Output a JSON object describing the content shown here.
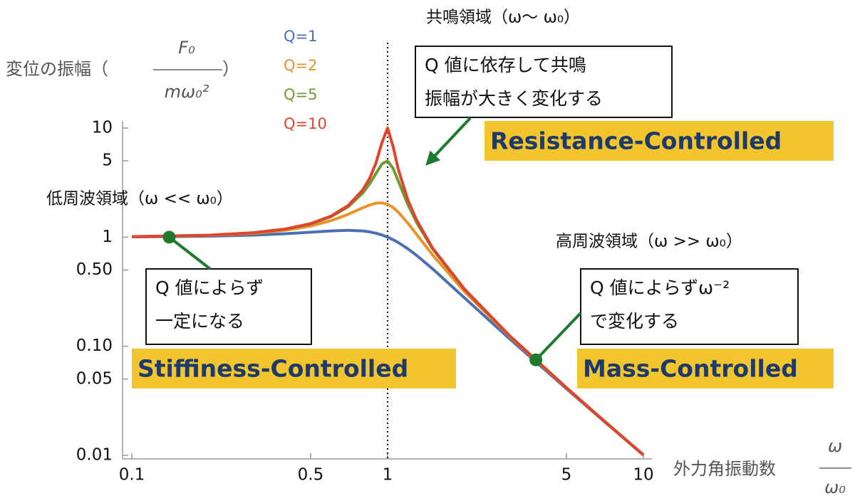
{
  "chart_data": {
    "type": "line",
    "x": [
      0.1,
      0.2,
      0.3,
      0.4,
      0.5,
      0.6,
      0.7,
      0.8,
      0.85,
      0.9,
      0.95,
      1,
      1.05,
      1.1,
      1.2,
      1.3,
      1.5,
      2,
      3,
      5,
      7,
      10
    ],
    "series": [
      {
        "name": "Q=1",
        "color": "#4a6fb5",
        "values": [
          1.005,
          1.02,
          1.044,
          1.075,
          1.109,
          1.14,
          1.155,
          1.14,
          1.118,
          1.087,
          1.047,
          1,
          0.948,
          0.893,
          0.782,
          0.679,
          0.512,
          0.277,
          0.117,
          0.0408,
          0.0206,
          0.01005
        ]
      },
      {
        "name": "Q=2",
        "color": "#e8932a",
        "values": [
          1.009,
          1.036,
          1.084,
          1.158,
          1.265,
          1.415,
          1.617,
          1.858,
          1.97,
          2.047,
          2.062,
          2,
          1.87,
          1.699,
          1.344,
          1.055,
          0.686,
          0.316,
          0.123,
          0.0414,
          0.0208,
          0.01009
        ]
      },
      {
        "name": "Q=5",
        "color": "#6e9a2e",
        "values": [
          1.01,
          1.041,
          1.097,
          1.185,
          1.322,
          1.536,
          1.891,
          2.538,
          3.073,
          3.821,
          4.683,
          5,
          4.279,
          3.288,
          1.995,
          1.356,
          0.778,
          0.33,
          0.1247,
          0.0416,
          0.0208,
          0.0101
        ]
      },
      {
        "name": "Q=10",
        "color": "#e0452c",
        "values": [
          1.01,
          1.041,
          1.098,
          1.189,
          1.33,
          1.556,
          1.943,
          2.712,
          3.446,
          4.757,
          7.347,
          10,
          6.813,
          4.218,
          2.193,
          1.424,
          0.794,
          0.333,
          0.1249,
          0.0417,
          0.0208,
          0.0101
        ]
      }
    ],
    "log_x": true,
    "log_y": true,
    "xlim": [
      0.1,
      10
    ],
    "ylim": [
      0.01,
      10
    ],
    "xticks": [
      0.1,
      0.5,
      1,
      5,
      10
    ],
    "yticks": [
      0.01,
      0.05,
      {
        "value": 0.1,
        "label": "0.10"
      },
      {
        "value": 0.5,
        "label": "0.50"
      },
      1,
      5,
      10
    ],
    "vline": 1,
    "ylabel": {
      "prefix": "変位の振幅（",
      "numerator": "F₀",
      "denominator": "mω₀²",
      "suffix": "）"
    },
    "xlabel": {
      "prefix": "外力角振動数",
      "numerator": "ω",
      "denominator": "ω₀"
    },
    "regions": [
      {
        "heading": "低周波領域（ω << ω₀）",
        "note": [
          "Q 値によらず",
          "一定になる"
        ],
        "label": "Stiffiness-Controlled",
        "point": [
          0.14,
          1
        ]
      },
      {
        "heading": "共鳴領域（ω〜 ω₀）",
        "note": [
          "Q 値に依存して共鳴",
          "振幅が大きく変化する"
        ],
        "label": "Resistance-Controlled"
      },
      {
        "heading": "高周波領域（ω >> ω₀）",
        "note": [
          "Q 値によらずω⁻²",
          "で変化する"
        ],
        "label": "Mass-Controlled",
        "point": [
          3.8,
          0.075
        ]
      }
    ]
  }
}
